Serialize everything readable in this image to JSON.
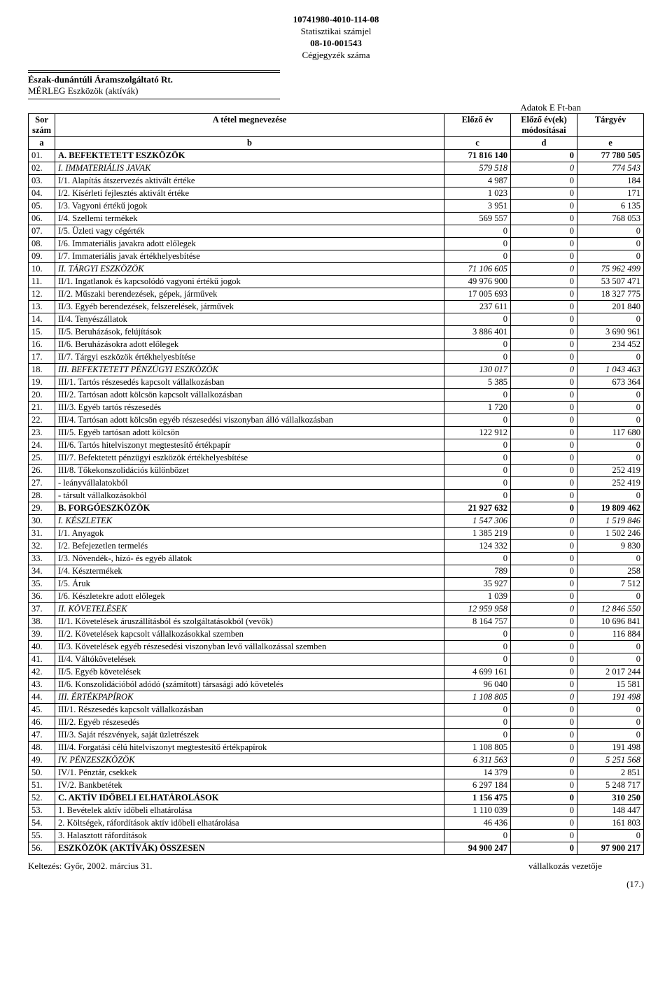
{
  "header": {
    "stat_id": "10741980-4010-114-08",
    "stat_label": "Statisztikai számjel",
    "reg_id": "08-10-001543",
    "reg_label": "Cégjegyzék száma",
    "company": "Észak-dunántúli Áramszolgáltató Rt.",
    "doc_title": "MÉRLEG Eszközök (aktívák)",
    "unit": "Adatok E Ft-ban"
  },
  "table": {
    "head": {
      "sor": "Sor\nszám",
      "name": "A tétel megnevezése",
      "c": "Előző év",
      "d": "Előző év(ek)\nmódosításai",
      "e": "Tárgyév",
      "a": "a",
      "b": "b",
      "cl": "c",
      "dl": "d",
      "el": "e"
    },
    "rows": [
      {
        "n": "01.",
        "t": "A. BEFEKTETETT ESZKÖZÖK",
        "c": "71 816 140",
        "d": "0",
        "e": "77 780 505",
        "bold": true
      },
      {
        "n": "02.",
        "t": "I. IMMATERIÁLIS JAVAK",
        "c": "579 518",
        "d": "0",
        "e": "774 543",
        "italic": true
      },
      {
        "n": "03.",
        "t": "I/1. Alapítás átszervezés aktivált értéke",
        "c": "4 987",
        "d": "0",
        "e": "184"
      },
      {
        "n": "04.",
        "t": "I/2. Kísérleti fejlesztés aktivált értéke",
        "c": "1 023",
        "d": "0",
        "e": "171"
      },
      {
        "n": "05.",
        "t": "I/3. Vagyoni értékű jogok",
        "c": "3 951",
        "d": "0",
        "e": "6 135"
      },
      {
        "n": "06.",
        "t": "I/4. Szellemi termékek",
        "c": "569 557",
        "d": "0",
        "e": "768 053"
      },
      {
        "n": "07.",
        "t": "I/5. Üzleti vagy cégérték",
        "c": "0",
        "d": "0",
        "e": "0"
      },
      {
        "n": "08.",
        "t": "I/6. Immateriális javakra adott előlegek",
        "c": "0",
        "d": "0",
        "e": "0"
      },
      {
        "n": "09.",
        "t": "I/7. Immateriális javak értékhelyesbítése",
        "c": "0",
        "d": "0",
        "e": "0"
      },
      {
        "n": "10.",
        "t": "II. TÁRGYI ESZKÖZÖK",
        "c": "71 106 605",
        "d": "0",
        "e": "75 962 499",
        "italic": true
      },
      {
        "n": "11.",
        "t": "II/1. Ingatlanok és kapcsolódó vagyoni értékű jogok",
        "c": "49 976 900",
        "d": "0",
        "e": "53 507 471"
      },
      {
        "n": "12.",
        "t": "II/2. Műszaki berendezések, gépek, járművek",
        "c": "17 005 693",
        "d": "0",
        "e": "18 327 775"
      },
      {
        "n": "13.",
        "t": "II/3. Egyéb berendezések, felszerelések, járművek",
        "c": "237 611",
        "d": "0",
        "e": "201 840"
      },
      {
        "n": "14.",
        "t": "II/4. Tenyészállatok",
        "c": "0",
        "d": "0",
        "e": "0"
      },
      {
        "n": "15.",
        "t": "II/5. Beruházások, felújítások",
        "c": "3 886 401",
        "d": "0",
        "e": "3 690 961"
      },
      {
        "n": "16.",
        "t": "II/6. Beruházásokra adott előlegek",
        "c": "0",
        "d": "0",
        "e": "234 452"
      },
      {
        "n": "17.",
        "t": "II/7. Tárgyi eszközök értékhelyesbítése",
        "c": "0",
        "d": "0",
        "e": "0"
      },
      {
        "n": "18.",
        "t": "III. BEFEKTETETT PÉNZÜGYI ESZKÖZÖK",
        "c": "130 017",
        "d": "0",
        "e": "1 043 463",
        "italic": true
      },
      {
        "n": "19.",
        "t": "III/1. Tartós részesedés kapcsolt vállalkozásban",
        "c": "5 385",
        "d": "0",
        "e": "673 364"
      },
      {
        "n": "20.",
        "t": "III/2. Tartósan adott kölcsön kapcsolt vállalkozásban",
        "c": "0",
        "d": "0",
        "e": "0"
      },
      {
        "n": "21.",
        "t": "III/3. Egyéb tartós részesedés",
        "c": "1 720",
        "d": "0",
        "e": "0"
      },
      {
        "n": "22.",
        "t": "III/4. Tartósan adott kölcsön egyéb részesedési viszonyban álló vállalkozásban",
        "c": "0",
        "d": "0",
        "e": "0"
      },
      {
        "n": "23.",
        "t": "III/5. Egyéb tartósan adott kölcsön",
        "c": "122 912",
        "d": "0",
        "e": "117 680"
      },
      {
        "n": "24.",
        "t": "III/6. Tartós hitelviszonyt megtestesítő értékpapír",
        "c": "0",
        "d": "0",
        "e": "0"
      },
      {
        "n": "25.",
        "t": "III/7. Befektetett pénzügyi eszközök értékhelyesbítése",
        "c": "0",
        "d": "0",
        "e": "0"
      },
      {
        "n": "26.",
        "t": "III/8. Tőkekonszolidációs különbözet",
        "c": "0",
        "d": "0",
        "e": "252 419"
      },
      {
        "n": "27.",
        "t": "       - leányvállalatokból",
        "c": "0",
        "d": "0",
        "e": "252 419"
      },
      {
        "n": "28.",
        "t": "       - társult vállalkozásokból",
        "c": "0",
        "d": "0",
        "e": "0"
      },
      {
        "n": "29.",
        "t": "B. FORGÓESZKÖZÖK",
        "c": "21 927 632",
        "d": "0",
        "e": "19 809 462",
        "bold": true
      },
      {
        "n": "30.",
        "t": "I. KÉSZLETEK",
        "c": "1 547 306",
        "d": "0",
        "e": "1 519 846",
        "italic": true
      },
      {
        "n": "31.",
        "t": "I/1. Anyagok",
        "c": "1 385 219",
        "d": "0",
        "e": "1 502 246"
      },
      {
        "n": "32.",
        "t": "I/2. Befejezetlen termelés",
        "c": "124 332",
        "d": "0",
        "e": "9 830"
      },
      {
        "n": "33.",
        "t": "I/3. Növendék-, hízó- és egyéb állatok",
        "c": "0",
        "d": "0",
        "e": "0"
      },
      {
        "n": "34.",
        "t": "I/4. Késztermékek",
        "c": "789",
        "d": "0",
        "e": "258"
      },
      {
        "n": "35.",
        "t": "I/5. Áruk",
        "c": "35 927",
        "d": "0",
        "e": "7 512"
      },
      {
        "n": "36.",
        "t": "I/6. Készletekre adott előlegek",
        "c": "1 039",
        "d": "0",
        "e": "0"
      },
      {
        "n": "37.",
        "t": "II. KÖVETELÉSEK",
        "c": "12 959 958",
        "d": "0",
        "e": "12 846 550",
        "italic": true
      },
      {
        "n": "38.",
        "t": "II/1. Követelések áruszállításból és szolgáltatásokból (vevők)",
        "c": "8 164 757",
        "d": "0",
        "e": "10 696 841"
      },
      {
        "n": "39.",
        "t": "II/2. Követelések kapcsolt vállalkozásokkal szemben",
        "c": "0",
        "d": "0",
        "e": "116 884"
      },
      {
        "n": "40.",
        "t": "II/3. Követelések egyéb részesedési viszonyban levő vállalkozással szemben",
        "c": "0",
        "d": "0",
        "e": "0"
      },
      {
        "n": "41.",
        "t": "II/4. Váltókövetelések",
        "c": "0",
        "d": "0",
        "e": "0"
      },
      {
        "n": "42.",
        "t": "II/5. Egyéb követelések",
        "c": "4 699 161",
        "d": "0",
        "e": "2 017 244"
      },
      {
        "n": "43.",
        "t": "II/6. Konszolidációból adódó (számított) társasági adó követelés",
        "c": "96 040",
        "d": "0",
        "e": "15 581"
      },
      {
        "n": "44.",
        "t": "III. ÉRTÉKPAPÍROK",
        "c": "1 108 805",
        "d": "0",
        "e": "191 498",
        "italic": true
      },
      {
        "n": "45.",
        "t": "III/1. Részesedés kapcsolt vállalkozásban",
        "c": "0",
        "d": "0",
        "e": "0"
      },
      {
        "n": "46.",
        "t": "III/2. Egyéb részesedés",
        "c": "0",
        "d": "0",
        "e": "0"
      },
      {
        "n": "47.",
        "t": "III/3. Saját részvények, saját üzletrészek",
        "c": "0",
        "d": "0",
        "e": "0"
      },
      {
        "n": "48.",
        "t": "III/4. Forgatási célú hitelviszonyt megtestesítő értékpapírok",
        "c": "1 108 805",
        "d": "0",
        "e": "191 498"
      },
      {
        "n": "49.",
        "t": "IV. PÉNZESZKÖZÖK",
        "c": "6 311 563",
        "d": "0",
        "e": "5 251 568",
        "italic": true
      },
      {
        "n": "50.",
        "t": "IV/1. Pénztár, csekkek",
        "c": "14 379",
        "d": "0",
        "e": "2 851"
      },
      {
        "n": "51.",
        "t": "IV/2. Bankbetétek",
        "c": "6 297 184",
        "d": "0",
        "e": "5 248 717"
      },
      {
        "n": "52.",
        "t": "C. AKTÍV IDŐBELI ELHATÁROLÁSOK",
        "c": "1 156 475",
        "d": "0",
        "e": "310 250",
        "bold": true
      },
      {
        "n": "53.",
        "t": "1. Bevételek aktív időbeli elhatárolása",
        "c": "1 110 039",
        "d": "0",
        "e": "148 447"
      },
      {
        "n": "54.",
        "t": "2. Költségek, ráfordítások aktív időbeli elhatárolása",
        "c": "46 436",
        "d": "0",
        "e": "161 803"
      },
      {
        "n": "55.",
        "t": "3. Halasztott ráfordítások",
        "c": "0",
        "d": "0",
        "e": "0"
      },
      {
        "n": "56.",
        "t": "ESZKÖZÖK (AKTÍVÁK) ÖSSZESEN",
        "c": "94 900 247",
        "d": "0",
        "e": "97 900 217",
        "bold": true
      }
    ]
  },
  "footer": {
    "date": "Keltezés: Győr, 2002. március 31.",
    "sign": "vállalkozás vezetője",
    "page": "(17.)"
  }
}
